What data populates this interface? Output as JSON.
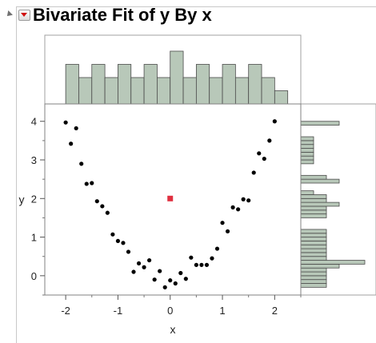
{
  "header": {
    "title": "Bivariate Fit of y By x"
  },
  "icons": {
    "disclosure": "disclosure-triangle-icon",
    "menu": "red-triangle-menu-icon"
  },
  "colors": {
    "histogram_fill": "#b8c8b9",
    "histogram_stroke": "#4a4a4a",
    "points": "#000000",
    "highlight_point": "#e03040"
  },
  "chart_data": {
    "type": "scatter",
    "xlabel": "x",
    "ylabel": "y",
    "xlim": [
      -2.4,
      2.5
    ],
    "ylim": [
      -0.5,
      4.45
    ],
    "xticks": [
      "-2",
      "-1",
      "0",
      "1",
      "2"
    ],
    "yticks": [
      "0",
      "1",
      "2",
      "3",
      "4"
    ],
    "points": [
      [
        -2.0,
        3.97
      ],
      [
        -1.9,
        3.42
      ],
      [
        -1.8,
        3.82
      ],
      [
        -1.7,
        2.9
      ],
      [
        -1.6,
        2.38
      ],
      [
        -1.5,
        2.4
      ],
      [
        -1.4,
        1.93
      ],
      [
        -1.3,
        1.8
      ],
      [
        -1.2,
        1.63
      ],
      [
        -1.1,
        1.07
      ],
      [
        -1.0,
        0.9
      ],
      [
        -0.9,
        0.85
      ],
      [
        -0.8,
        0.62
      ],
      [
        -0.7,
        0.1
      ],
      [
        -0.6,
        0.32
      ],
      [
        -0.5,
        0.22
      ],
      [
        -0.4,
        0.4
      ],
      [
        -0.3,
        -0.1
      ],
      [
        -0.2,
        0.12
      ],
      [
        -0.1,
        -0.3
      ],
      [
        0.0,
        -0.12
      ],
      [
        0.1,
        -0.2
      ],
      [
        0.2,
        0.07
      ],
      [
        0.3,
        -0.08
      ],
      [
        0.4,
        0.47
      ],
      [
        0.5,
        0.28
      ],
      [
        0.6,
        0.28
      ],
      [
        0.7,
        0.28
      ],
      [
        0.8,
        0.45
      ],
      [
        0.9,
        0.7
      ],
      [
        1.0,
        1.37
      ],
      [
        1.1,
        1.15
      ],
      [
        1.2,
        1.77
      ],
      [
        1.3,
        1.72
      ],
      [
        1.4,
        1.98
      ],
      [
        1.5,
        1.95
      ],
      [
        1.6,
        2.67
      ],
      [
        1.7,
        3.17
      ],
      [
        1.8,
        3.03
      ],
      [
        1.9,
        3.5
      ],
      [
        2.0,
        4.0
      ]
    ],
    "highlight_point": [
      0.0,
      2.0
    ],
    "x_histogram": {
      "bin_edges": [
        -2.0,
        -1.75,
        -1.5,
        -1.25,
        -1.0,
        -0.75,
        -0.5,
        -0.25,
        0.0,
        0.25,
        0.5,
        0.75,
        1.0,
        1.25,
        1.5,
        1.75,
        2.0,
        2.25
      ],
      "counts": [
        3,
        2,
        3,
        2,
        3,
        2,
        3,
        2,
        4,
        2,
        3,
        2,
        3,
        2,
        3,
        2,
        1
      ]
    },
    "y_histogram": {
      "bin_edges": [
        -0.4,
        -0.3,
        -0.2,
        -0.1,
        0.0,
        0.1,
        0.2,
        0.3,
        0.4,
        0.5,
        0.6,
        0.7,
        0.8,
        0.9,
        1.0,
        1.1,
        1.2,
        1.3,
        1.4,
        1.5,
        1.6,
        1.7,
        1.8,
        1.9,
        2.0,
        2.1,
        2.2,
        2.3,
        2.4,
        2.5,
        2.6,
        2.7,
        2.8,
        2.9,
        3.0,
        3.1,
        3.2,
        3.3,
        3.4,
        3.5,
        3.6,
        3.7,
        3.8,
        3.9,
        4.0
      ],
      "counts": [
        0,
        2,
        2,
        2,
        2,
        2,
        3,
        5,
        2,
        2,
        2,
        2,
        2,
        2,
        2,
        2,
        0,
        0,
        0,
        2,
        2,
        2,
        3,
        2,
        2,
        1,
        0,
        0,
        3,
        2,
        0,
        0,
        0,
        1,
        1,
        1,
        1,
        1,
        1,
        1,
        0,
        0,
        0,
        3
      ]
    }
  }
}
